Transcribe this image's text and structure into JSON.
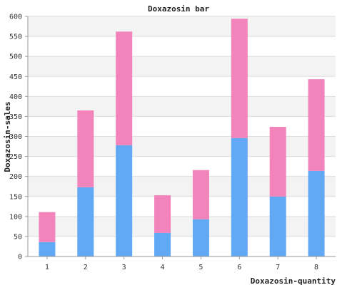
{
  "chart_data": {
    "type": "bar",
    "stacked": true,
    "title": "Doxazosin bar",
    "xlabel": "Doxazosin-quantity",
    "ylabel": "Doxazosin-sales",
    "categories": [
      "1",
      "2",
      "3",
      "4",
      "5",
      "6",
      "7",
      "8"
    ],
    "ylim": [
      0,
      600
    ],
    "yticks": [
      0,
      50,
      100,
      150,
      200,
      250,
      300,
      350,
      400,
      450,
      500,
      550,
      600
    ],
    "grid": true,
    "legend": "none",
    "series": [
      {
        "values": [
          36,
          173,
          278,
          59,
          93,
          296,
          150,
          214
        ],
        "color": "#61a8f5"
      },
      {
        "values": [
          75,
          192,
          284,
          94,
          123,
          298,
          174,
          229
        ],
        "color": "#f283bb"
      }
    ],
    "background_bands": [
      "#ffffff",
      "#f3f3f3"
    ],
    "gridline_color": "#dddddd"
  }
}
